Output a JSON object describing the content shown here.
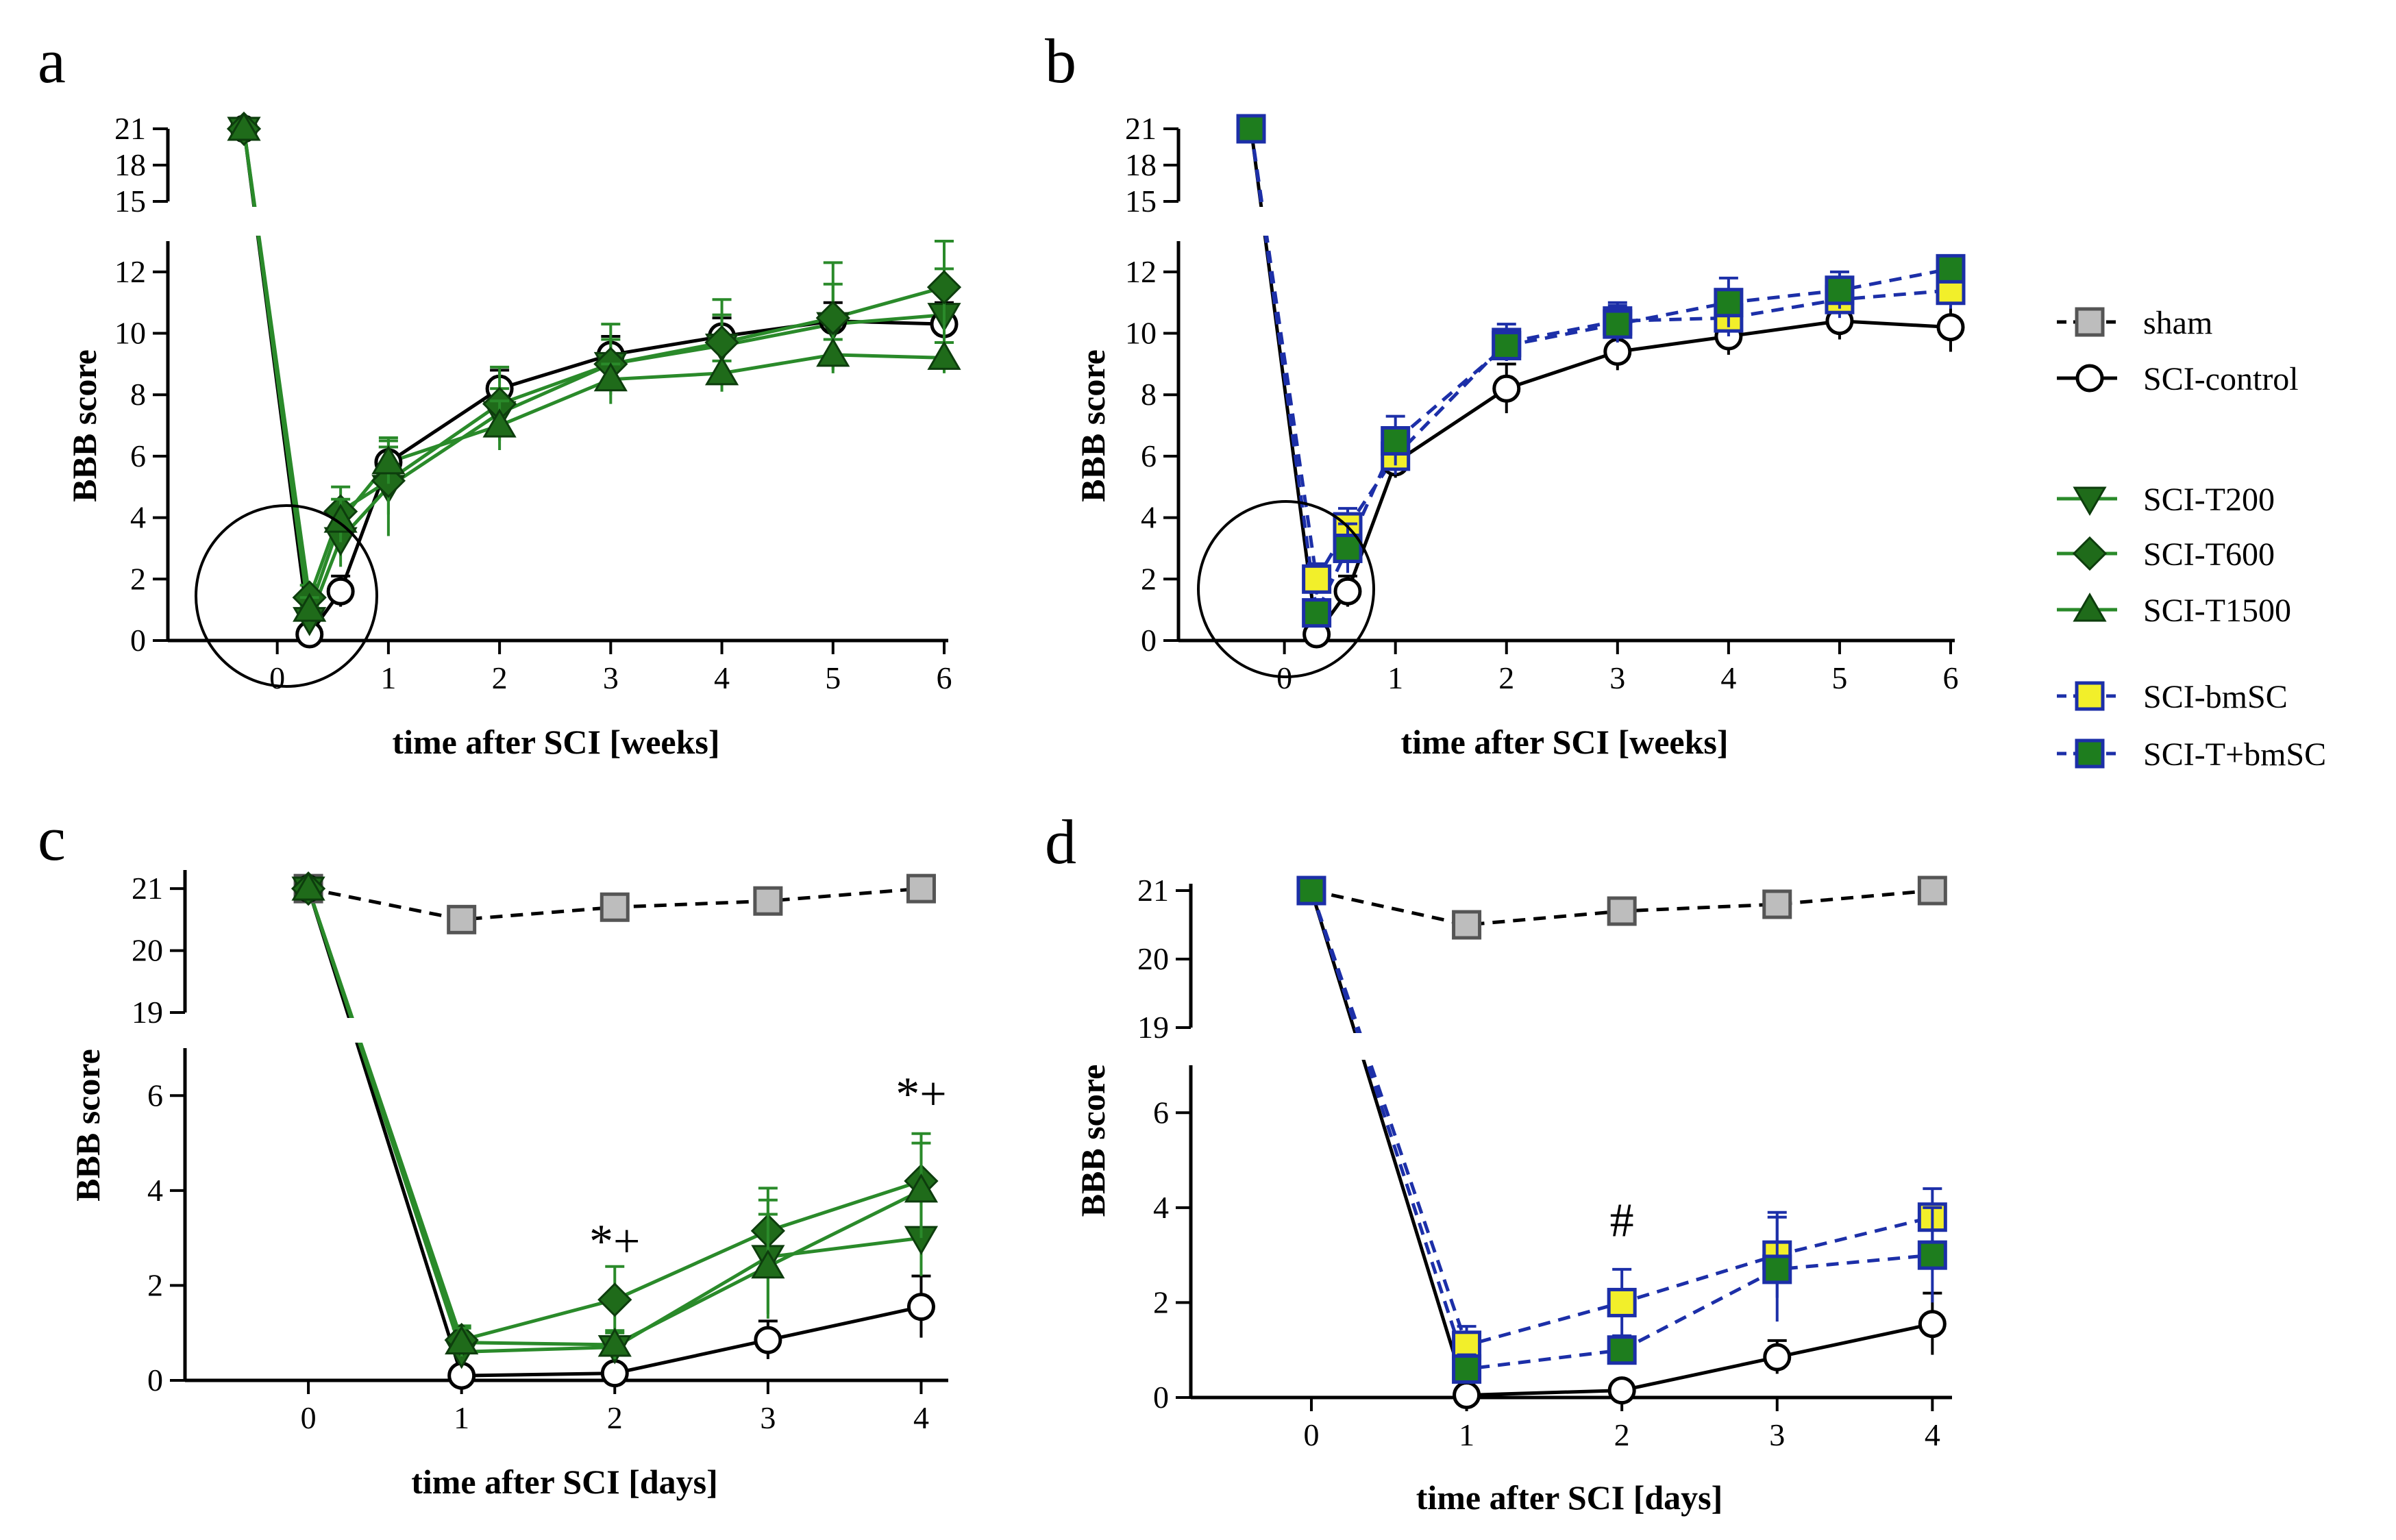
{
  "colors": {
    "black": "#000000",
    "green_line": "#2a8a2a",
    "green_marker": "#1f6b1a",
    "blue_line": "#1c2fa8",
    "sham_fill": "#bdbdbd",
    "bmsc_fill": "#f2ef2a",
    "tbmsc_fill": "#1e7d1e",
    "white": "#ffffff"
  },
  "legend": {
    "items": [
      {
        "key": "sham",
        "label": "sham"
      },
      {
        "key": "control",
        "label": "SCI-control"
      },
      {
        "key": "t200",
        "label": "SCI-T200"
      },
      {
        "key": "t600",
        "label": "SCI-T600"
      },
      {
        "key": "t1500",
        "label": "SCI-T1500"
      },
      {
        "key": "bmsc",
        "label": "SCI-bmSC"
      },
      {
        "key": "tbmsc",
        "label": "SCI-T+bmSC"
      }
    ]
  },
  "chart_data": [
    {
      "panel": "a",
      "type": "line",
      "xlabel": "time after SCI [weeks]",
      "ylabel": "BBB score",
      "x_ticks": [
        0,
        1,
        2,
        3,
        4,
        5,
        6
      ],
      "y_ticks_lower": [
        0,
        2,
        4,
        6,
        8,
        10,
        12
      ],
      "y_ticks_upper": [
        15,
        18,
        21
      ],
      "ylim_lower": [
        0,
        13
      ],
      "ylim_upper": [
        15,
        21
      ],
      "annotation": "circle around acute phase points",
      "series": [
        {
          "key": "control",
          "name": "SCI-control",
          "x": [
            -0.3,
            0.29,
            0.57,
            1,
            2,
            3,
            4,
            5,
            6
          ],
          "values": [
            21,
            0.2,
            1.6,
            5.8,
            8.2,
            9.3,
            9.9,
            10.4,
            10.3
          ],
          "errors": [
            0,
            0.3,
            0.5,
            0.5,
            0.6,
            0.6,
            0.6,
            0.6,
            0.7
          ]
        },
        {
          "key": "t200",
          "name": "SCI-T200",
          "x": [
            -0.3,
            0.29,
            0.57,
            1,
            2,
            3,
            4,
            5,
            6
          ],
          "values": [
            21,
            0.7,
            3.3,
            5.0,
            7.4,
            9.0,
            9.6,
            10.3,
            10.6
          ],
          "errors": [
            0,
            0.4,
            0.9,
            1.6,
            0.8,
            1.3,
            1.5,
            1.3,
            1.5
          ]
        },
        {
          "key": "t600",
          "name": "SCI-T600",
          "x": [
            -0.3,
            0.29,
            0.57,
            1,
            2,
            3,
            4,
            5,
            6
          ],
          "values": [
            21,
            1.4,
            4.2,
            5.2,
            7.7,
            9.0,
            9.7,
            10.5,
            11.5
          ],
          "errors": [
            0,
            0.4,
            0.8,
            1.1,
            1.2,
            0.8,
            0.9,
            1.8,
            1.5
          ]
        },
        {
          "key": "t1500",
          "name": "SCI-T1500",
          "x": [
            -0.3,
            0.29,
            0.57,
            1,
            2,
            3,
            4,
            5,
            6
          ],
          "values": [
            21,
            1.0,
            3.9,
            5.8,
            7.0,
            8.5,
            8.7,
            9.3,
            9.2
          ],
          "errors": [
            0,
            0.4,
            0.7,
            0.7,
            0.8,
            0.5,
            0.4,
            0.5,
            0.5
          ]
        }
      ]
    },
    {
      "panel": "b",
      "type": "line",
      "xlabel": "time after SCI [weeks]",
      "ylabel": "BBB score",
      "x_ticks": [
        0,
        1,
        2,
        3,
        4,
        5,
        6
      ],
      "y_ticks_lower": [
        0,
        2,
        4,
        6,
        8,
        10,
        12
      ],
      "y_ticks_upper": [
        15,
        18,
        21
      ],
      "ylim_lower": [
        0,
        13
      ],
      "ylim_upper": [
        15,
        21
      ],
      "annotation": "circle around acute phase points",
      "series": [
        {
          "key": "control",
          "name": "SCI-control",
          "x": [
            -0.3,
            0.29,
            0.57,
            1,
            2,
            3,
            4,
            5,
            6
          ],
          "values": [
            21,
            0.2,
            1.6,
            5.8,
            8.2,
            9.4,
            9.9,
            10.4,
            10.2
          ],
          "errors": [
            0,
            0.3,
            0.5,
            0.5,
            0.8,
            0.6,
            0.6,
            0.6,
            0.8
          ]
        },
        {
          "key": "bmsc",
          "name": "SCI-bmSC",
          "x": [
            -0.3,
            0.29,
            0.57,
            1,
            2,
            3,
            4,
            5,
            6
          ],
          "values": [
            21,
            2.0,
            3.7,
            6.0,
            9.7,
            10.4,
            10.5,
            11.1,
            11.4
          ],
          "errors": [
            0,
            0.5,
            0.6,
            0.6,
            0.6,
            0.6,
            0.6,
            0.6,
            0.6
          ]
        },
        {
          "key": "tbmsc",
          "name": "SCI-T+bmSC",
          "x": [
            -0.3,
            0.29,
            0.57,
            1,
            2,
            3,
            4,
            5,
            6
          ],
          "values": [
            21,
            0.9,
            3.0,
            6.5,
            9.6,
            10.3,
            11.0,
            11.4,
            12.1
          ],
          "errors": [
            0,
            0.4,
            0.8,
            0.8,
            0.5,
            0.6,
            0.8,
            0.6,
            0.4
          ]
        }
      ]
    },
    {
      "panel": "c",
      "type": "line",
      "xlabel": "time after SCI [days]",
      "ylabel": "BBB score",
      "x_ticks": [
        0,
        1,
        2,
        3,
        4
      ],
      "y_ticks_lower": [
        0,
        2,
        4,
        6
      ],
      "y_ticks_upper": [
        19,
        20,
        21
      ],
      "ylim_lower": [
        0,
        7
      ],
      "ylim_upper": [
        19,
        21.3
      ],
      "annotations": [
        {
          "x": 2,
          "y": 2.6,
          "text": "*+"
        },
        {
          "x": 4,
          "y": 5.7,
          "text": "*+"
        }
      ],
      "series": [
        {
          "key": "sham",
          "name": "sham",
          "x": [
            0,
            1,
            2,
            3,
            4
          ],
          "values": [
            21,
            20.5,
            20.7,
            20.8,
            21
          ],
          "errors": [
            0,
            0.12,
            0.12,
            0.08,
            0
          ]
        },
        {
          "key": "control",
          "name": "SCI-control",
          "x": [
            0,
            1,
            2,
            3,
            4
          ],
          "values": [
            21,
            0.1,
            0.15,
            0.85,
            1.55
          ],
          "errors": [
            0,
            0.1,
            0.1,
            0.4,
            0.65
          ]
        },
        {
          "key": "t200",
          "name": "SCI-T200",
          "x": [
            0,
            1,
            2,
            3,
            4
          ],
          "values": [
            21,
            0.6,
            0.7,
            2.6,
            3.0
          ],
          "errors": [
            0,
            0.3,
            0.3,
            1.2,
            0.8
          ]
        },
        {
          "key": "t600",
          "name": "SCI-T600",
          "x": [
            0,
            1,
            2,
            3,
            4
          ],
          "values": [
            21,
            0.85,
            1.7,
            3.15,
            4.2
          ],
          "errors": [
            0,
            0.3,
            0.7,
            0.9,
            1.0
          ]
        },
        {
          "key": "t1500",
          "name": "SCI-T1500",
          "x": [
            0,
            1,
            2,
            3,
            4
          ],
          "values": [
            21,
            0.8,
            0.75,
            2.4,
            4.0
          ],
          "errors": [
            0,
            0.3,
            0.3,
            1.1,
            1.0
          ]
        }
      ]
    },
    {
      "panel": "d",
      "type": "line",
      "xlabel": "time after SCI [days]",
      "ylabel": "BBB score",
      "x_ticks": [
        0,
        1,
        2,
        3,
        4
      ],
      "y_ticks_lower": [
        0,
        2,
        4,
        6
      ],
      "y_ticks_upper": [
        19,
        20,
        21
      ],
      "ylim_lower": [
        0,
        7
      ],
      "ylim_upper": [
        19,
        21.1
      ],
      "annotations": [
        {
          "x": 2,
          "y": 3.4,
          "text": "#"
        }
      ],
      "series": [
        {
          "key": "sham",
          "name": "sham",
          "x": [
            0,
            1,
            2,
            3,
            4
          ],
          "values": [
            21,
            20.5,
            20.7,
            20.8,
            21
          ],
          "errors": [
            0,
            0.12,
            0.12,
            0.08,
            0
          ]
        },
        {
          "key": "control",
          "name": "SCI-control",
          "x": [
            0,
            1,
            2,
            3,
            4
          ],
          "values": [
            21,
            0.05,
            0.15,
            0.85,
            1.55
          ],
          "errors": [
            0,
            0.1,
            0.1,
            0.35,
            0.65
          ]
        },
        {
          "key": "bmsc",
          "name": "SCI-bmSC",
          "x": [
            0,
            1,
            2,
            3,
            4
          ],
          "values": [
            21,
            1.1,
            2.0,
            3.0,
            3.8
          ],
          "errors": [
            0,
            0.4,
            0.7,
            0.9,
            0.6
          ]
        },
        {
          "key": "tbmsc",
          "name": "SCI-T+bmSC",
          "x": [
            0,
            1,
            2,
            3,
            4
          ],
          "values": [
            21,
            0.6,
            1.0,
            2.7,
            3.0
          ],
          "errors": [
            0,
            0.3,
            0.3,
            1.1,
            1.0
          ]
        }
      ]
    }
  ]
}
